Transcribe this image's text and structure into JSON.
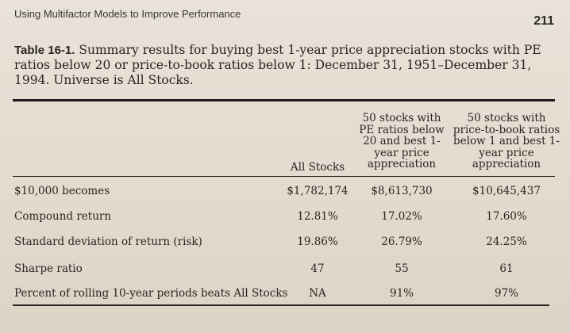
{
  "running_head": "Using Multifactor Models to Improve Performance",
  "page_number": "211",
  "caption": {
    "label": "Table 16-1.",
    "text": "Summary results for buying best 1-year price appreciation stocks with PE ratios below 20 or price-to-book ratios below 1: December 31, 1951–December 31, 1994. Universe is All Stocks."
  },
  "columns": [
    "All Stocks",
    "50 stocks with PE ratios below 20 and best 1-year price appreciation",
    "50 stocks with price-to-book ratios below 1 and best 1-year price appreciation"
  ],
  "rows": [
    {
      "label": "$10,000 becomes",
      "values": [
        "$1,782,174",
        "$8,613,730",
        "$10,645,437"
      ]
    },
    {
      "label": "Compound return",
      "values": [
        "12.81%",
        "17.02%",
        "17.60%"
      ]
    },
    {
      "label": "Standard deviation of return (risk)",
      "values": [
        "19.86%",
        "26.79%",
        "24.25%"
      ]
    },
    {
      "label": "Sharpe ratio",
      "values": [
        "47",
        "55",
        "61"
      ]
    },
    {
      "label": "Percent of rolling 10-year periods beats All Stocks",
      "values": [
        "NA",
        "91%",
        "97%"
      ]
    }
  ]
}
